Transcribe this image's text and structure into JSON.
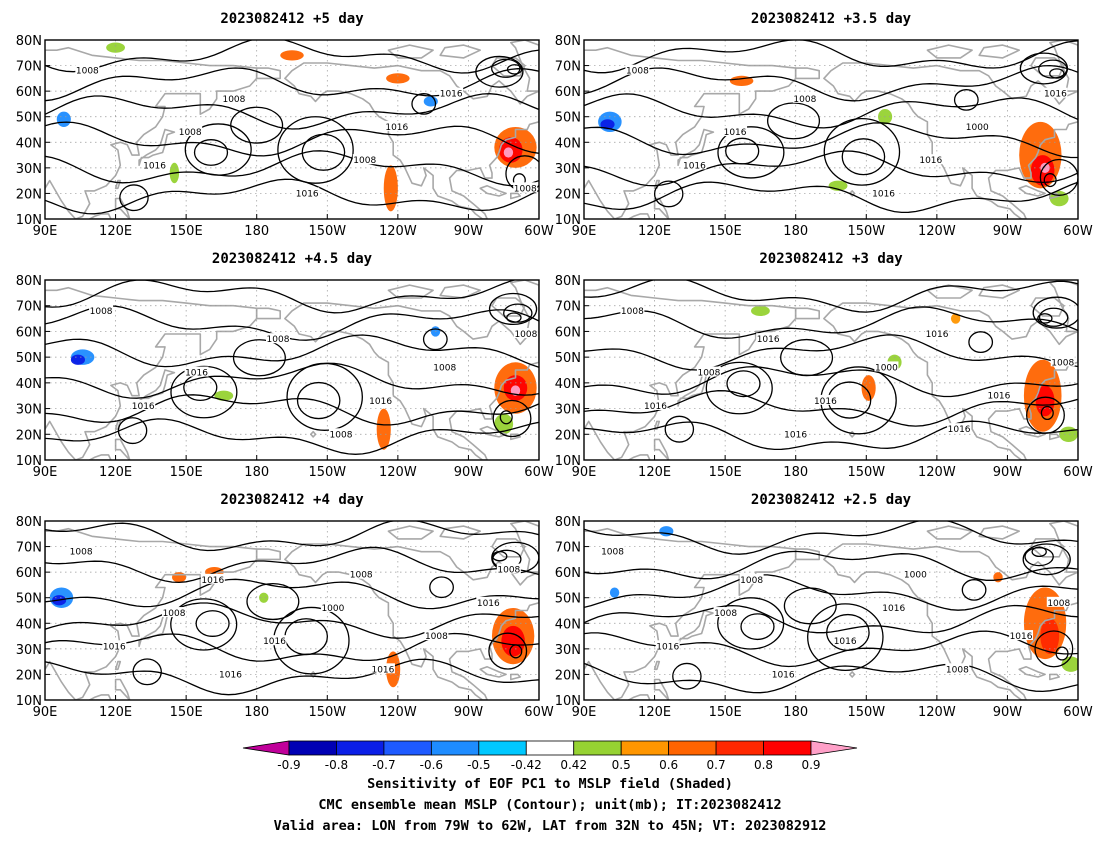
{
  "colors": {
    "land": "#a8a8a8",
    "contour": "#000000",
    "grid": "#9a9a9a",
    "bins": [
      "#c0009a",
      "#0000b4",
      "#0a1ee6",
      "#1e5aff",
      "#1e8cff",
      "#00c8ff",
      "#ffffff",
      "#96d232",
      "#ff9600",
      "#ff6400",
      "#ff2800",
      "#ff0000",
      "#ffa0c8"
    ]
  },
  "colorbar": {
    "ticks": [
      "-0.9",
      "-0.8",
      "-0.7",
      "-0.6",
      "-0.5",
      "-0.42",
      "0.42",
      "0.5",
      "0.6",
      "0.7",
      "0.8",
      "0.9"
    ]
  },
  "axes": {
    "lat_labels": [
      "10N",
      "20N",
      "30N",
      "40N",
      "50N",
      "60N",
      "70N",
      "80N"
    ],
    "lon_labels": [
      "90E",
      "120E",
      "150E",
      "180",
      "150W",
      "120W",
      "90W",
      "60W"
    ]
  },
  "panels": [
    {
      "title": "2023082412 +5 day",
      "contour_labels": [
        "1008",
        "1016",
        "1008",
        "1008",
        "1016",
        "1008",
        "1016",
        "1016",
        "1008"
      ],
      "blobs": [
        {
          "lon": 290,
          "lat": 38,
          "rx": 9,
          "ry": 8,
          "v": 0.65
        },
        {
          "lon": 288,
          "lat": 37,
          "rx": 5,
          "ry": 5,
          "v": 0.8
        },
        {
          "lon": 287,
          "lat": 36,
          "rx": 2,
          "ry": 2,
          "v": 0.92
        },
        {
          "lon": 237,
          "lat": 22,
          "rx": 3,
          "ry": 9,
          "v": 0.65
        },
        {
          "lon": 195,
          "lat": 74,
          "rx": 5,
          "ry": 2,
          "v": 0.6
        },
        {
          "lon": 240,
          "lat": 65,
          "rx": 5,
          "ry": 2,
          "v": 0.6
        },
        {
          "lon": 120,
          "lat": 77,
          "rx": 4,
          "ry": 2,
          "v": 0.45
        },
        {
          "lon": 145,
          "lat": 28,
          "rx": 2,
          "ry": 4,
          "v": 0.45
        },
        {
          "lon": 98,
          "lat": 49,
          "rx": 3,
          "ry": 3,
          "v": -0.55
        },
        {
          "lon": 254,
          "lat": 56,
          "rx": 3,
          "ry": 2,
          "v": -0.55
        }
      ]
    },
    {
      "title": "2023082412 +3.5 day",
      "contour_labels": [
        "1008",
        "1016",
        "1016",
        "1008",
        "1016",
        "1016",
        "1000",
        "1016"
      ],
      "blobs": [
        {
          "lon": 284,
          "lat": 35,
          "rx": 9,
          "ry": 13,
          "v": 0.65
        },
        {
          "lon": 285,
          "lat": 29,
          "rx": 5,
          "ry": 6,
          "v": 0.8
        },
        {
          "lon": 286,
          "lat": 30,
          "rx": 2,
          "ry": 2,
          "v": 0.92
        },
        {
          "lon": 157,
          "lat": 64,
          "rx": 5,
          "ry": 2,
          "v": 0.65
        },
        {
          "lon": 218,
          "lat": 50,
          "rx": 3,
          "ry": 3,
          "v": 0.45
        },
        {
          "lon": 198,
          "lat": 23,
          "rx": 4,
          "ry": 2,
          "v": 0.45
        },
        {
          "lon": 292,
          "lat": 18,
          "rx": 4,
          "ry": 3,
          "v": 0.45
        },
        {
          "lon": 101,
          "lat": 48,
          "rx": 5,
          "ry": 4,
          "v": -0.55
        },
        {
          "lon": 100,
          "lat": 47,
          "rx": 3,
          "ry": 2,
          "v": -0.7
        }
      ]
    },
    {
      "title": "2023082412 +4.5 day",
      "contour_labels": [
        "1008",
        "1016",
        "1016",
        "1008",
        "1008",
        "1016",
        "1008",
        "1008"
      ],
      "blobs": [
        {
          "lon": 290,
          "lat": 38,
          "rx": 9,
          "ry": 10,
          "v": 0.65
        },
        {
          "lon": 290,
          "lat": 38,
          "rx": 5,
          "ry": 5,
          "v": 0.8
        },
        {
          "lon": 290,
          "lat": 37,
          "rx": 2,
          "ry": 2,
          "v": 0.92
        },
        {
          "lon": 234,
          "lat": 22,
          "rx": 3,
          "ry": 8,
          "v": 0.65
        },
        {
          "lon": 285,
          "lat": 24,
          "rx": 4,
          "ry": 4,
          "v": 0.45
        },
        {
          "lon": 166,
          "lat": 35,
          "rx": 4,
          "ry": 2,
          "v": 0.45
        },
        {
          "lon": 106,
          "lat": 50,
          "rx": 5,
          "ry": 3,
          "v": -0.55
        },
        {
          "lon": 104,
          "lat": 49,
          "rx": 3,
          "ry": 2,
          "v": -0.7
        },
        {
          "lon": 256,
          "lat": 60,
          "rx": 2,
          "ry": 2,
          "v": -0.55
        }
      ]
    },
    {
      "title": "2023082412 +3 day",
      "contour_labels": [
        "1008",
        "1016",
        "1008",
        "1016",
        "1016",
        "1016",
        "1000",
        "1016",
        "1016",
        "1016",
        "1008"
      ],
      "blobs": [
        {
          "lon": 285,
          "lat": 35,
          "rx": 8,
          "ry": 14,
          "v": 0.65
        },
        {
          "lon": 286,
          "lat": 33,
          "rx": 4,
          "ry": 6,
          "v": 0.8
        },
        {
          "lon": 211,
          "lat": 38,
          "rx": 3,
          "ry": 5,
          "v": 0.6
        },
        {
          "lon": 222,
          "lat": 48,
          "rx": 3,
          "ry": 3,
          "v": 0.45
        },
        {
          "lon": 165,
          "lat": 68,
          "rx": 4,
          "ry": 2,
          "v": 0.45
        },
        {
          "lon": 296,
          "lat": 20,
          "rx": 4,
          "ry": 3,
          "v": 0.45
        },
        {
          "lon": 248,
          "lat": 65,
          "rx": 2,
          "ry": 2,
          "v": 0.5
        }
      ]
    },
    {
      "title": "2023082412 +4 day",
      "contour_labels": [
        "1008",
        "1016",
        "1008",
        "1016",
        "1016",
        "1016",
        "1000",
        "1008",
        "1016",
        "1008",
        "1016",
        "1008"
      ],
      "blobs": [
        {
          "lon": 289,
          "lat": 35,
          "rx": 9,
          "ry": 11,
          "v": 0.65
        },
        {
          "lon": 289,
          "lat": 33,
          "rx": 5,
          "ry": 6,
          "v": 0.8
        },
        {
          "lon": 238,
          "lat": 22,
          "rx": 3,
          "ry": 7,
          "v": 0.65
        },
        {
          "lon": 147,
          "lat": 58,
          "rx": 3,
          "ry": 2,
          "v": 0.6
        },
        {
          "lon": 162,
          "lat": 60,
          "rx": 4,
          "ry": 2,
          "v": 0.6
        },
        {
          "lon": 97,
          "lat": 50,
          "rx": 5,
          "ry": 4,
          "v": -0.55
        },
        {
          "lon": 96,
          "lat": 49,
          "rx": 3,
          "ry": 2,
          "v": -0.7
        },
        {
          "lon": 183,
          "lat": 50,
          "rx": 2,
          "ry": 2,
          "v": 0.45
        }
      ]
    },
    {
      "title": "2023082412 +2.5 day",
      "contour_labels": [
        "1008",
        "1016",
        "1008",
        "1008",
        "1016",
        "1016",
        "1016",
        "1000",
        "1008",
        "1016",
        "1008"
      ],
      "blobs": [
        {
          "lon": 286,
          "lat": 40,
          "rx": 9,
          "ry": 14,
          "v": 0.65
        },
        {
          "lon": 288,
          "lat": 35,
          "rx": 4,
          "ry": 7,
          "v": 0.75
        },
        {
          "lon": 297,
          "lat": 24,
          "rx": 4,
          "ry": 3,
          "v": 0.45
        },
        {
          "lon": 266,
          "lat": 58,
          "rx": 2,
          "ry": 2,
          "v": 0.6
        },
        {
          "lon": 125,
          "lat": 76,
          "rx": 3,
          "ry": 2,
          "v": -0.5
        },
        {
          "lon": 103,
          "lat": 52,
          "rx": 2,
          "ry": 2,
          "v": -0.5
        }
      ]
    }
  ],
  "captions": {
    "line1": "Sensitivity of EOF PC1 to MSLP field (Shaded)",
    "line2": "CMC ensemble mean MSLP (Contour); unit(mb); IT:2023082412",
    "line3": "Valid area: LON from 79W to 62W, LAT from 32N to 45N; VT: 2023082912"
  }
}
